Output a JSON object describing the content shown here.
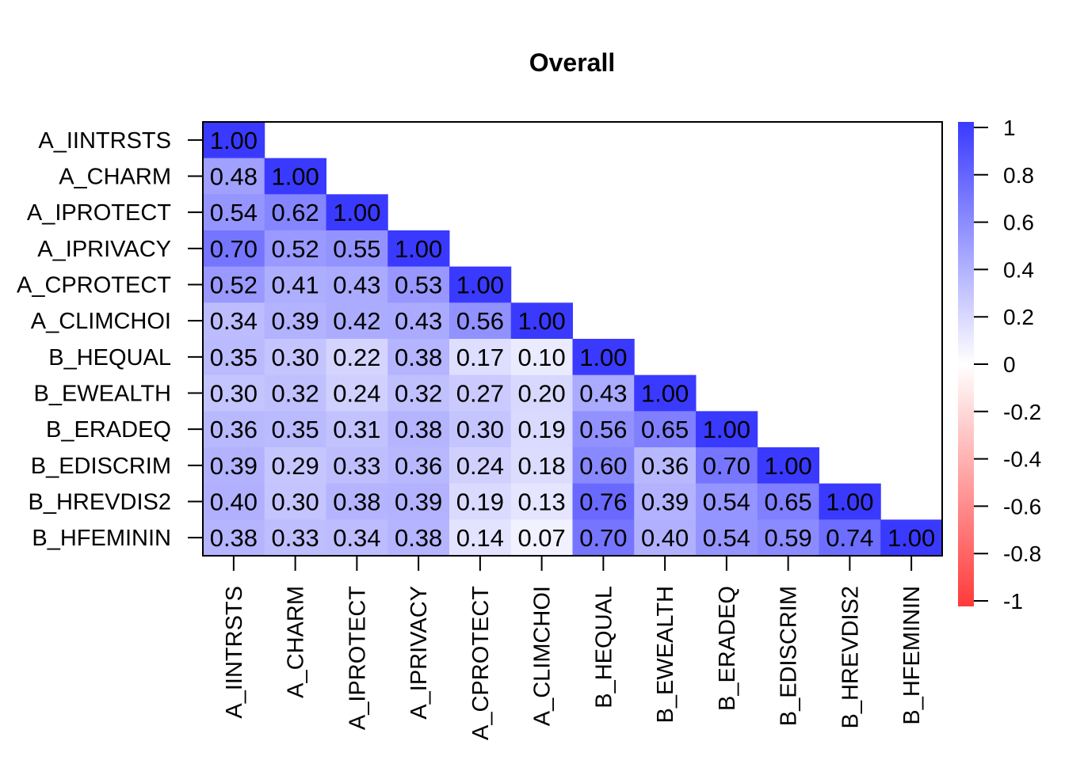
{
  "chart_data": {
    "type": "heatmap",
    "title": "Overall",
    "variables": [
      "A_IINTRSTS",
      "A_CHARM",
      "A_IPROTECT",
      "A_IPRIVACY",
      "A_CPROTECT",
      "A_CLIMCHOI",
      "B_HEQUAL",
      "B_EWEALTH",
      "B_ERADEQ",
      "B_EDISCRIM",
      "B_HREVDIS2",
      "B_HFEMININ"
    ],
    "matrix_lower": [
      [
        "1.00"
      ],
      [
        "0.48",
        "1.00"
      ],
      [
        "0.54",
        "0.62",
        "1.00"
      ],
      [
        "0.70",
        "0.52",
        "0.55",
        "1.00"
      ],
      [
        "0.52",
        "0.41",
        "0.43",
        "0.53",
        "1.00"
      ],
      [
        "0.34",
        "0.39",
        "0.42",
        "0.43",
        "0.56",
        "1.00"
      ],
      [
        "0.35",
        "0.30",
        "0.22",
        "0.38",
        "0.17",
        "0.10",
        "1.00"
      ],
      [
        "0.30",
        "0.32",
        "0.24",
        "0.32",
        "0.27",
        "0.20",
        "0.43",
        "1.00"
      ],
      [
        "0.36",
        "0.35",
        "0.31",
        "0.38",
        "0.30",
        "0.19",
        "0.56",
        "0.65",
        "1.00"
      ],
      [
        "0.39",
        "0.29",
        "0.33",
        "0.36",
        "0.24",
        "0.18",
        "0.60",
        "0.36",
        "0.70",
        "1.00"
      ],
      [
        "0.40",
        "0.30",
        "0.38",
        "0.39",
        "0.19",
        "0.13",
        "0.76",
        "0.39",
        "0.54",
        "0.65",
        "1.00"
      ],
      [
        "0.38",
        "0.33",
        "0.34",
        "0.38",
        "0.14",
        "0.07",
        "0.70",
        "0.40",
        "0.54",
        "0.59",
        "0.74",
        "1.00"
      ]
    ],
    "colorbar": {
      "range": [
        -1,
        1
      ],
      "ticks": [
        "1",
        "0.8",
        "0.6",
        "0.4",
        "0.2",
        "0",
        "-0.2",
        "-0.4",
        "-0.6",
        "-0.8",
        "-1"
      ],
      "colors": {
        "negative": "#FF3A3A",
        "zero": "#FFFFFF",
        "positive": "#3A3AFF"
      }
    }
  }
}
